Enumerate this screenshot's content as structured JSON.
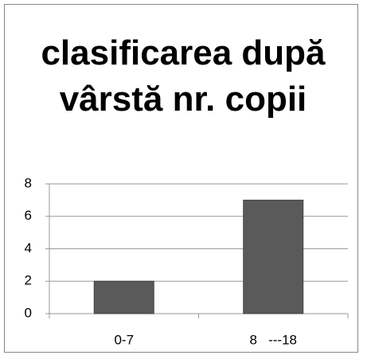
{
  "chart_data": {
    "type": "bar",
    "title": "clasificarea după vârstă nr. copii",
    "categories": [
      "0-7",
      "8   ---18"
    ],
    "values": [
      2,
      7
    ],
    "color": "#5a5a5a",
    "ylim": [
      0,
      8
    ],
    "yticks": [
      0,
      2,
      4,
      6,
      8
    ],
    "grid": true
  }
}
